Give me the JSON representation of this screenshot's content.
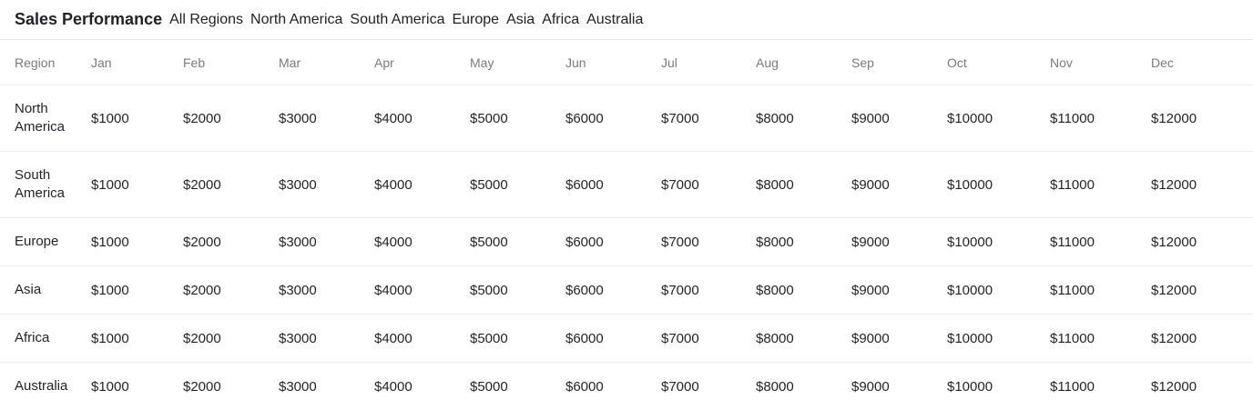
{
  "header": {
    "title": "Sales Performance",
    "filters": [
      {
        "label": "All Regions"
      },
      {
        "label": "North America"
      },
      {
        "label": "South America"
      },
      {
        "label": "Europe"
      },
      {
        "label": "Asia"
      },
      {
        "label": "Africa"
      },
      {
        "label": "Australia"
      }
    ]
  },
  "table": {
    "columns": [
      "Region",
      "Jan",
      "Feb",
      "Mar",
      "Apr",
      "May",
      "Jun",
      "Jul",
      "Aug",
      "Sep",
      "Oct",
      "Nov",
      "Dec"
    ],
    "rows": [
      {
        "region": "North America",
        "values": [
          "$1000",
          "$2000",
          "$3000",
          "$4000",
          "$5000",
          "$6000",
          "$7000",
          "$8000",
          "$9000",
          "$10000",
          "$11000",
          "$12000"
        ]
      },
      {
        "region": "South America",
        "values": [
          "$1000",
          "$2000",
          "$3000",
          "$4000",
          "$5000",
          "$6000",
          "$7000",
          "$8000",
          "$9000",
          "$10000",
          "$11000",
          "$12000"
        ]
      },
      {
        "region": "Europe",
        "values": [
          "$1000",
          "$2000",
          "$3000",
          "$4000",
          "$5000",
          "$6000",
          "$7000",
          "$8000",
          "$9000",
          "$10000",
          "$11000",
          "$12000"
        ]
      },
      {
        "region": "Asia",
        "values": [
          "$1000",
          "$2000",
          "$3000",
          "$4000",
          "$5000",
          "$6000",
          "$7000",
          "$8000",
          "$9000",
          "$10000",
          "$11000",
          "$12000"
        ]
      },
      {
        "region": "Africa",
        "values": [
          "$1000",
          "$2000",
          "$3000",
          "$4000",
          "$5000",
          "$6000",
          "$7000",
          "$8000",
          "$9000",
          "$10000",
          "$11000",
          "$12000"
        ]
      },
      {
        "region": "Australia",
        "values": [
          "$1000",
          "$2000",
          "$3000",
          "$4000",
          "$5000",
          "$6000",
          "$7000",
          "$8000",
          "$9000",
          "$10000",
          "$11000",
          "$12000"
        ]
      }
    ]
  }
}
